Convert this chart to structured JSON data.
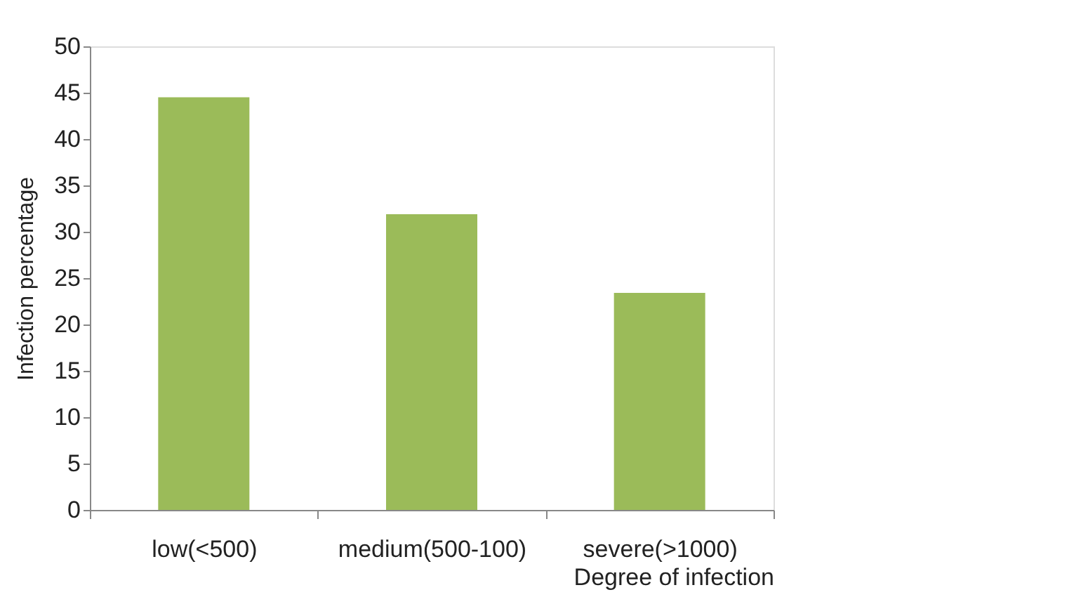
{
  "chart_data": {
    "type": "bar",
    "xlabel": "Degree of infection",
    "ylabel": "Infection percentage",
    "categories": [
      "low(<500)",
      "medium(500-100)",
      "severe(>1000)"
    ],
    "values": [
      44.5,
      31.9,
      23.4
    ],
    "color": "#9bbb59",
    "ylim": [
      0,
      50
    ],
    "yticks": [
      0,
      5,
      10,
      15,
      20,
      25,
      30,
      35,
      40,
      45,
      50
    ],
    "grid": false
  }
}
